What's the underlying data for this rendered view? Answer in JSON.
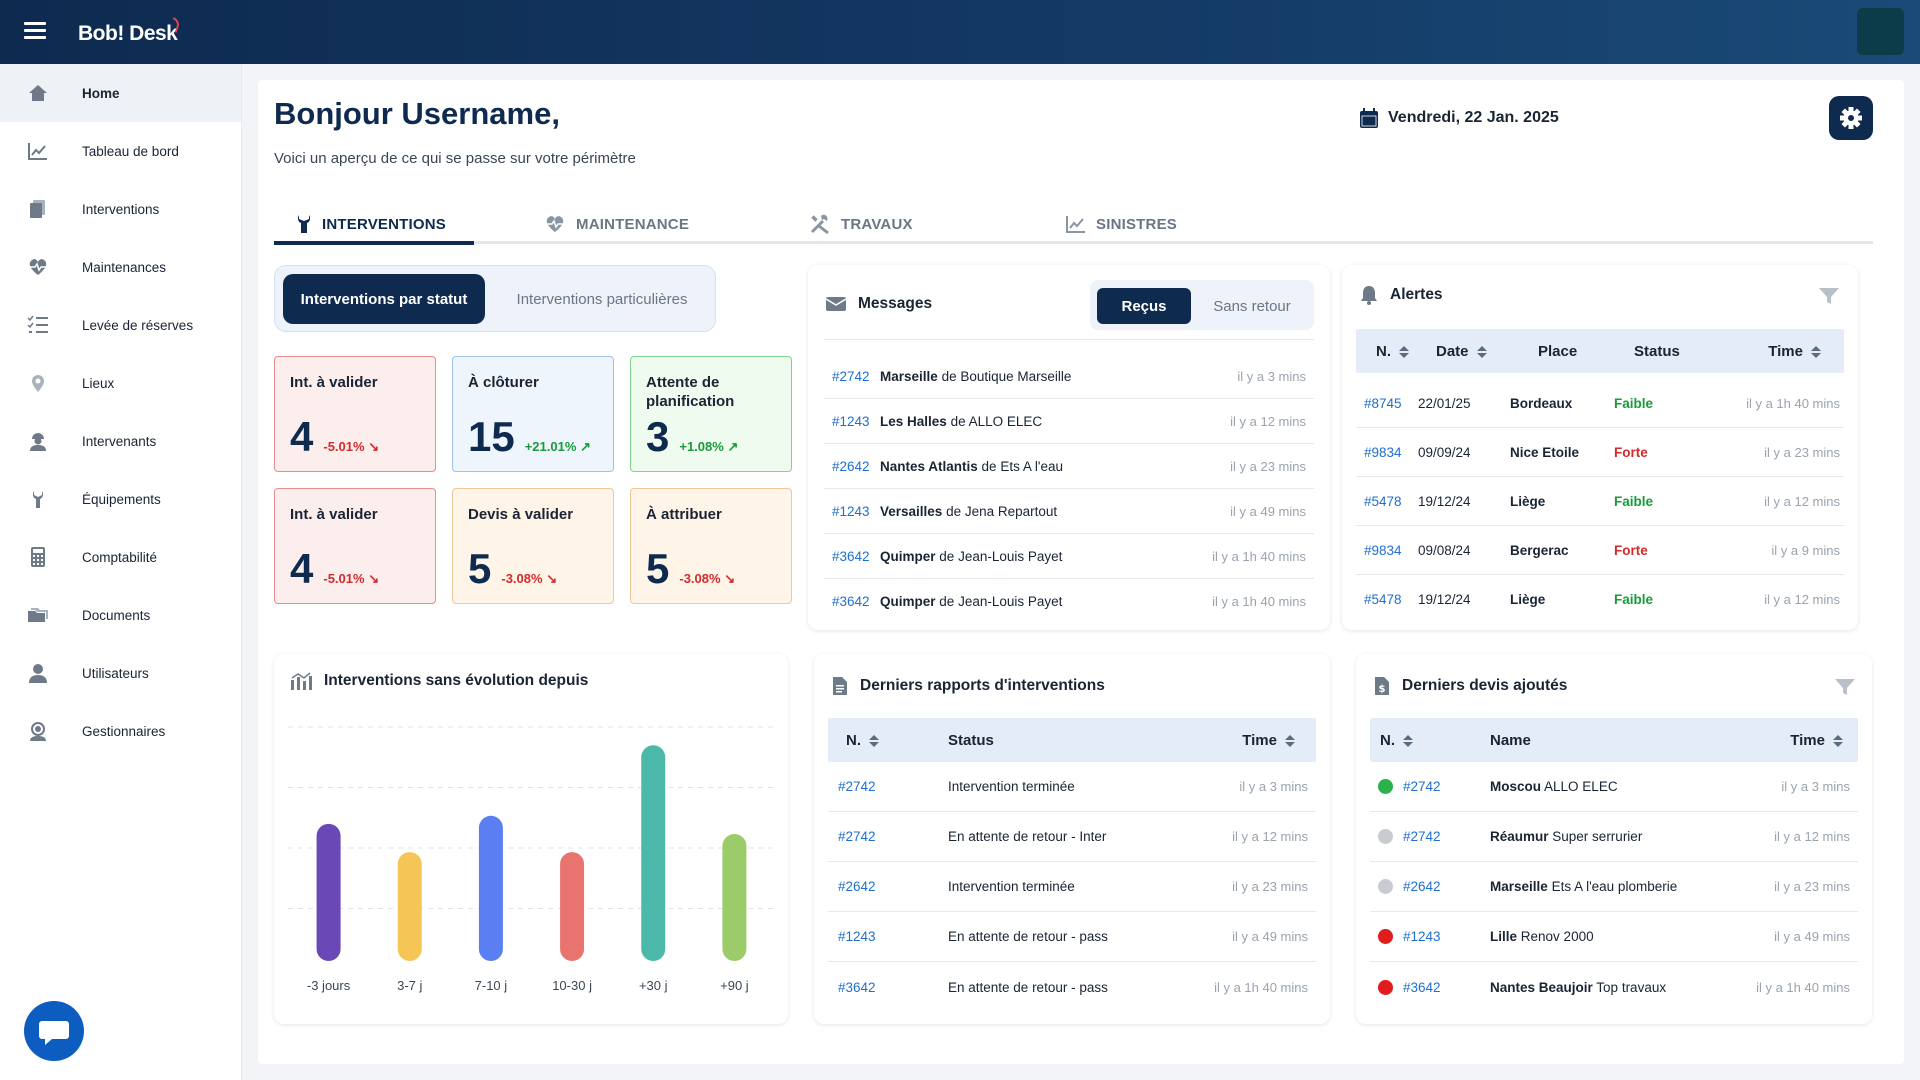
{
  "app": {
    "logo": "Bob! Desk"
  },
  "sidebar": {
    "items": [
      {
        "label": "Home",
        "icon": "home-icon",
        "active": true
      },
      {
        "label": "Tableau de bord",
        "icon": "chart-line-icon"
      },
      {
        "label": "Interventions",
        "icon": "documents-icon"
      },
      {
        "label": "Maintenances",
        "icon": "heart-pulse-icon"
      },
      {
        "label": "Levée de réserves",
        "icon": "checklist-icon"
      },
      {
        "label": "Lieux",
        "icon": "map-pin-icon"
      },
      {
        "label": "Intervenants",
        "icon": "worker-icon"
      },
      {
        "label": "Équipements",
        "icon": "wrench-icon"
      },
      {
        "label": "Comptabilité",
        "icon": "calculator-icon"
      },
      {
        "label": "Documents",
        "icon": "folders-icon"
      },
      {
        "label": "Utilisateurs",
        "icon": "user-icon"
      },
      {
        "label": "Gestionnaires",
        "icon": "manager-icon"
      }
    ]
  },
  "header": {
    "greeting": "Bonjour Username,",
    "subtitle": "Voici un aperçu de ce qui se passe sur votre périmètre",
    "date": "Vendredi, 22 Jan. 2025"
  },
  "tabs": [
    {
      "label": "INTERVENTIONS",
      "icon": "wrench-icon",
      "active": true
    },
    {
      "label": "MAINTENANCE",
      "icon": "heart-pulse-icon"
    },
    {
      "label": "TRAVAUX",
      "icon": "tools-icon"
    },
    {
      "label": "SINISTRES",
      "icon": "chart-line-icon"
    }
  ],
  "interventions_toggle": {
    "active": "Interventions par statut",
    "other": "Interventions particulières"
  },
  "kpis": [
    {
      "title": "Int. à valider",
      "value": "4",
      "delta": "-5.01%",
      "trend": "down",
      "color": "red"
    },
    {
      "title": "À clôturer",
      "value": "15",
      "delta": "+21.01%",
      "trend": "up",
      "color": "blue"
    },
    {
      "title": "Attente de planification",
      "value": "3",
      "delta": "+1.08%",
      "trend": "up",
      "color": "green"
    },
    {
      "title": "Int. à valider",
      "value": "4",
      "delta": "-5.01%",
      "trend": "down",
      "color": "red"
    },
    {
      "title": "Devis à valider",
      "value": "5",
      "delta": "-3.08%",
      "trend": "down",
      "color": "orange"
    },
    {
      "title": "À attribuer",
      "value": "5",
      "delta": "-3.08%",
      "trend": "down",
      "color": "orange"
    }
  ],
  "messages": {
    "title": "Messages",
    "toggle": {
      "active": "Reçus",
      "other": "Sans retour"
    },
    "rows": [
      {
        "id": "#2742",
        "place": "Marseille",
        "sep": "de",
        "from": "Boutique Marseille",
        "time": "il y a 3 mins"
      },
      {
        "id": "#1243",
        "place": "Les Halles",
        "sep": "de",
        "from": "ALLO ELEC",
        "time": "il y a 12 mins"
      },
      {
        "id": "#2642",
        "place": "Nantes Atlantis",
        "sep": "de",
        "from": "Ets A l'eau",
        "time": "il y a 23 mins"
      },
      {
        "id": "#1243",
        "place": "Versailles",
        "sep": "de",
        "from": "Jena Repartout",
        "time": "il y a 49 mins"
      },
      {
        "id": "#3642",
        "place": "Quimper",
        "sep": "de",
        "from": "Jean-Louis Payet",
        "time": "il y a 1h 40 mins"
      },
      {
        "id": "#3642",
        "place": "Quimper",
        "sep": "de",
        "from": "Jean-Louis Payet",
        "time": "il y a 1h 40 mins"
      }
    ]
  },
  "alertes": {
    "title": "Alertes",
    "columns": [
      "N.",
      "Date",
      "Place",
      "Status",
      "Time"
    ],
    "rows": [
      {
        "id": "#8745",
        "date": "22/01/25",
        "place": "Bordeaux",
        "status": "Faible",
        "time": "il y a 1h 40 mins"
      },
      {
        "id": "#9834",
        "date": "09/09/24",
        "place": "Nice Etoile",
        "status": "Forte",
        "time": "il y a 23 mins"
      },
      {
        "id": "#5478",
        "date": "19/12/24",
        "place": "Liège",
        "status": "Faible",
        "time": "il y a 12 mins"
      },
      {
        "id": "#9834",
        "date": "09/08/24",
        "place": "Bergerac",
        "status": "Forte",
        "time": "il y a 9 mins"
      },
      {
        "id": "#5478",
        "date": "19/12/24",
        "place": "Liège",
        "status": "Faible",
        "time": "il y a 12 mins"
      }
    ]
  },
  "evolution": {
    "title": "Interventions sans évolution depuis"
  },
  "chart_data": {
    "type": "bar",
    "title": "Interventions sans évolution depuis",
    "categories": [
      "-3 jours",
      "3-7 j",
      "7-10 j",
      "10-30 j",
      "+30 j",
      "+90 j"
    ],
    "values": [
      68,
      54,
      72,
      54,
      107,
      63
    ],
    "colors": [
      "#6a48b6",
      "#f5c555",
      "#5b7ff2",
      "#e8736f",
      "#4bb8a9",
      "#9ccb6a"
    ],
    "ylim": [
      0,
      120
    ],
    "grid": true
  },
  "rapports": {
    "title": "Derniers rapports d'interventions",
    "columns": [
      "N.",
      "Status",
      "Time"
    ],
    "rows": [
      {
        "id": "#2742",
        "status": "Intervention terminée",
        "time": "il y a 3 mins"
      },
      {
        "id": "#2742",
        "status": "En attente de retour - Inter",
        "time": "il y a 12 mins"
      },
      {
        "id": "#2642",
        "status": "Intervention terminée",
        "time": "il y a 23 mins"
      },
      {
        "id": "#1243",
        "status": "En attente de retour - pass",
        "time": "il y a 49 mins"
      },
      {
        "id": "#3642",
        "status": "En attente de retour - pass",
        "time": "il y a 1h 40 mins"
      }
    ]
  },
  "devis": {
    "title": "Derniers devis ajoutés",
    "columns": [
      "N.",
      "Name",
      "Time"
    ],
    "rows": [
      {
        "dot": "#2bb24c",
        "id": "#2742",
        "place": "Moscou",
        "name": "ALLO ELEC",
        "time": "il y a 3 mins"
      },
      {
        "dot": "#c8ccd1",
        "id": "#2742",
        "place": "Réaumur",
        "name": "Super serrurier",
        "time": "il y a 12 mins"
      },
      {
        "dot": "#c8ccd1",
        "id": "#2642",
        "place": "Marseille",
        "name": "Ets A l'eau plomberie",
        "time": "il y a 23 mins"
      },
      {
        "dot": "#e01c1c",
        "id": "#1243",
        "place": "Lille",
        "name": "Renov 2000",
        "time": "il y a 49 mins"
      },
      {
        "dot": "#e01c1c",
        "id": "#3642",
        "place": "Nantes Beaujoir",
        "name": "Top travaux",
        "time": "il y a 1h 40 mins"
      }
    ]
  }
}
